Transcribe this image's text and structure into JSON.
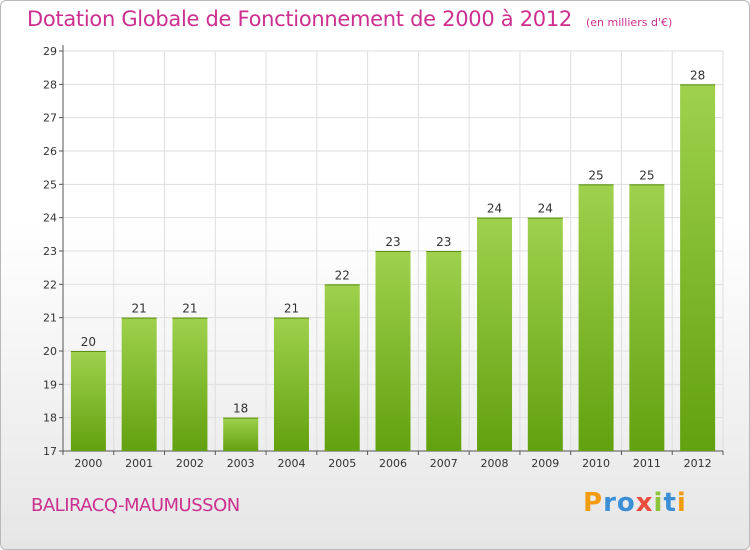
{
  "chart_data": {
    "type": "bar",
    "title": "Dotation Globale de Fonctionnement de 2000 à 2012",
    "subtitle": "(en milliers d'€)",
    "categories": [
      "2000",
      "2001",
      "2002",
      "2003",
      "2004",
      "2005",
      "2006",
      "2007",
      "2008",
      "2009",
      "2010",
      "2011",
      "2012"
    ],
    "values": [
      20,
      21,
      21,
      18,
      21,
      22,
      23,
      23,
      24,
      24,
      25,
      25,
      28
    ],
    "yticks": [
      17,
      18,
      19,
      20,
      21,
      22,
      23,
      24,
      25,
      26,
      27,
      28,
      29
    ],
    "ylim": [
      17,
      29
    ],
    "grid": true,
    "bar_color": "#8cc43c"
  },
  "commune": "BALIRACQ-MAUMUSSON",
  "logo": {
    "letters": [
      "P",
      "r",
      "o",
      "x",
      "i",
      "t",
      "i"
    ],
    "colors": [
      "#f39c12",
      "#3b8fd6",
      "#3b8fd6",
      "#e74c3c",
      "#8cc43c",
      "#3b8fd6",
      "#f39c12"
    ]
  }
}
